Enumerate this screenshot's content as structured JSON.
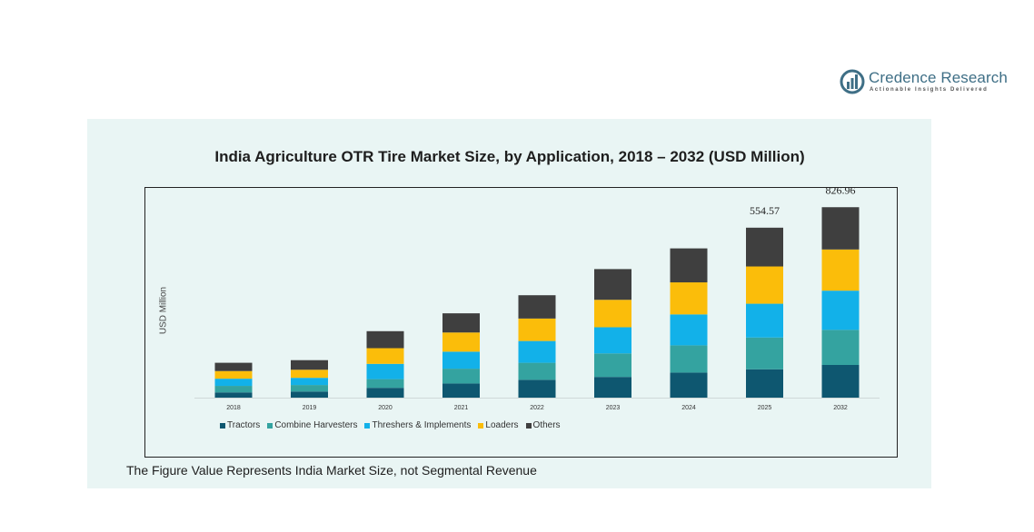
{
  "brand": {
    "name": "Credence Research",
    "tagline": "Actionable Insights Delivered"
  },
  "footnote": "The Figure Value Represents India Market Size, not Segmental Revenue",
  "colors": {
    "Tractors": "#0e5770",
    "Combine Harvesters": "#34a3a0",
    "Threshers & Implements": "#12b1e9",
    "Loaders": "#fbbd0a",
    "Others": "#3f3f3f",
    "panel": "#e9f5f4",
    "brand": "#3f6f86"
  },
  "chart_data": {
    "type": "bar",
    "stacked": true,
    "title": "India Agriculture OTR Tire Market Size, by Application, 2018 – 2032 (USD Million)",
    "xlabel": "",
    "ylabel": "USD Million",
    "ylim": [
      0,
      900
    ],
    "categories": [
      "2018",
      "2019",
      "2020",
      "2021",
      "2022",
      "2023",
      "2024",
      "2025",
      "2032"
    ],
    "series": [
      {
        "name": "Tractors",
        "values": [
          24,
          28,
          45,
          65,
          82,
          95,
          115,
          130,
          150
        ]
      },
      {
        "name": "Combine Harvesters",
        "values": [
          30,
          30,
          40,
          68,
          78,
          108,
          125,
          146,
          161
        ]
      },
      {
        "name": "Threshers & Implements",
        "values": [
          33,
          33,
          70,
          78,
          100,
          120,
          142,
          155,
          180
        ]
      },
      {
        "name": "Loaders",
        "values": [
          35,
          37,
          72,
          88,
          103,
          126,
          147,
          171,
          189
        ]
      },
      {
        "name": "Others",
        "values": [
          38,
          44,
          78,
          88,
          107,
          141,
          156,
          178,
          194
        ]
      }
    ],
    "data_labels": [
      {
        "category": "2025",
        "value": "554.57"
      },
      {
        "category": "2032",
        "value": "826.96"
      }
    ],
    "legend": [
      "Tractors",
      "Combine Harvesters",
      "Threshers & Implements",
      "Loaders",
      "Others"
    ],
    "legend_position": "bottom-left",
    "grid": false
  }
}
